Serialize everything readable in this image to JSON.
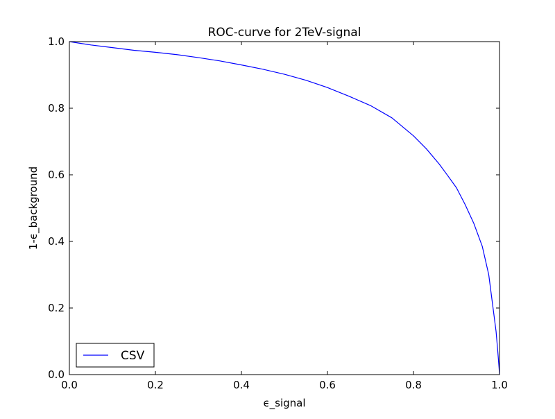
{
  "chart_data": {
    "type": "line",
    "title": "ROC-curve for 2TeV-signal",
    "xlabel": "ϵ_signal",
    "ylabel": "1-ϵ_background",
    "xlim": [
      0.0,
      1.0
    ],
    "ylim": [
      0.0,
      1.0
    ],
    "xticks": [
      0.0,
      0.2,
      0.4,
      0.6,
      0.8,
      1.0
    ],
    "yticks": [
      0.0,
      0.2,
      0.4,
      0.6,
      0.8,
      1.0
    ],
    "xtick_labels": [
      "0.0",
      "0.2",
      "0.4",
      "0.6",
      "0.8",
      "1.0"
    ],
    "ytick_labels": [
      "0.0",
      "0.2",
      "0.4",
      "0.6",
      "0.8",
      "1.0"
    ],
    "grid": false,
    "legend": {
      "position": "lower-left"
    },
    "series": [
      {
        "name": "CSV",
        "color": "#0000ff",
        "x": [
          0.0,
          0.05,
          0.1,
          0.15,
          0.2,
          0.25,
          0.3,
          0.35,
          0.4,
          0.45,
          0.5,
          0.55,
          0.6,
          0.65,
          0.7,
          0.75,
          0.8,
          0.83,
          0.86,
          0.88,
          0.9,
          0.92,
          0.94,
          0.96,
          0.975,
          0.985,
          0.992,
          0.996,
          0.999,
          1.0
        ],
        "y": [
          1.0,
          0.99,
          0.982,
          0.974,
          0.968,
          0.961,
          0.952,
          0.942,
          0.93,
          0.917,
          0.902,
          0.884,
          0.862,
          0.836,
          0.808,
          0.771,
          0.717,
          0.678,
          0.632,
          0.597,
          0.561,
          0.511,
          0.455,
          0.385,
          0.3,
          0.2,
          0.13,
          0.07,
          0.02,
          0.0
        ]
      }
    ]
  }
}
